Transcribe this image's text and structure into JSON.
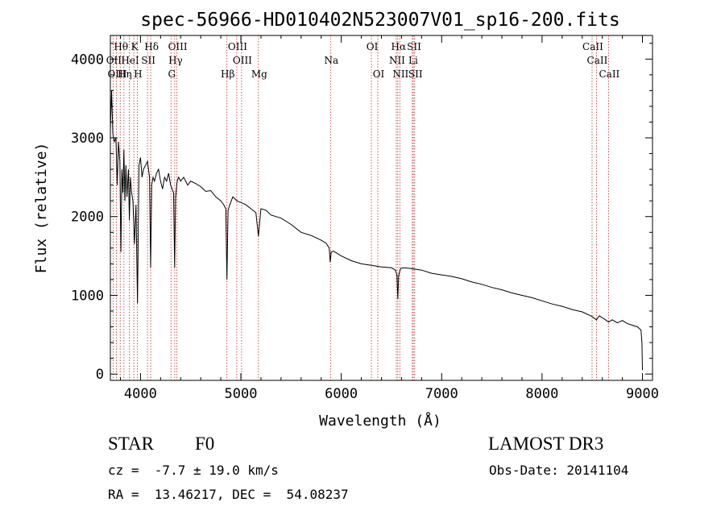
{
  "chart_data": {
    "type": "line",
    "title": "spec-56966-HD010402N523007V01_sp16-200.fits",
    "xlabel": "Wavelength (Å)",
    "ylabel": "Flux (relative)",
    "xlim": [
      3700,
      9100
    ],
    "ylim": [
      -80,
      4300
    ],
    "xticks": [
      4000,
      5000,
      6000,
      7000,
      8000,
      9000
    ],
    "yticks": [
      0,
      1000,
      2000,
      3000,
      4000
    ],
    "series": [
      {
        "name": "spectrum",
        "x": [
          3700,
          3712,
          3725,
          3740,
          3755,
          3768,
          3780,
          3795,
          3805,
          3815,
          3825,
          3835,
          3845,
          3855,
          3865,
          3880,
          3889,
          3900,
          3912,
          3925,
          3940,
          3955,
          3970,
          3985,
          4000,
          4015,
          4030,
          4050,
          4070,
          4090,
          4101,
          4112,
          4125,
          4140,
          4160,
          4180,
          4200,
          4220,
          4240,
          4260,
          4280,
          4300,
          4315,
          4330,
          4340,
          4350,
          4365,
          4380,
          4400,
          4430,
          4470,
          4500,
          4550,
          4600,
          4650,
          4700,
          4750,
          4800,
          4830,
          4850,
          4861,
          4872,
          4890,
          4920,
          4960,
          5000,
          5050,
          5100,
          5150,
          5175,
          5200,
          5250,
          5300,
          5400,
          5500,
          5600,
          5700,
          5800,
          5850,
          5880,
          5890,
          5900,
          5920,
          5950,
          6000,
          6100,
          6200,
          6300,
          6400,
          6500,
          6540,
          6555,
          6563,
          6572,
          6590,
          6620,
          6700,
          6800,
          6900,
          7000,
          7100,
          7200,
          7300,
          7400,
          7500,
          7600,
          7700,
          7800,
          7900,
          8000,
          8100,
          8200,
          8300,
          8400,
          8498,
          8530,
          8542,
          8570,
          8620,
          8662,
          8700,
          8750,
          8800,
          8850,
          8900,
          8950,
          8985,
          8995,
          9000
        ],
        "values": [
          3100,
          3600,
          3050,
          2950,
          3000,
          2400,
          2950,
          2700,
          1550,
          2600,
          2300,
          2850,
          2200,
          2650,
          2250,
          2600,
          1950,
          2500,
          2300,
          2200,
          1650,
          2150,
          900,
          2650,
          2750,
          2500,
          2600,
          2650,
          2700,
          2500,
          1350,
          2400,
          2500,
          2450,
          2550,
          2600,
          2450,
          2350,
          2500,
          2450,
          2550,
          2400,
          2350,
          2300,
          1350,
          2250,
          2450,
          2500,
          2450,
          2500,
          2400,
          2450,
          2420,
          2380,
          2320,
          2330,
          2250,
          2200,
          2150,
          2100,
          1200,
          2080,
          2150,
          2250,
          2200,
          2180,
          2150,
          2100,
          2050,
          1750,
          2100,
          2080,
          2020,
          1980,
          1900,
          1800,
          1760,
          1700,
          1660,
          1600,
          1420,
          1550,
          1560,
          1540,
          1500,
          1440,
          1400,
          1380,
          1360,
          1350,
          1320,
          1250,
          950,
          1250,
          1340,
          1350,
          1340,
          1320,
          1280,
          1260,
          1240,
          1210,
          1170,
          1140,
          1100,
          1070,
          1030,
          1000,
          970,
          930,
          890,
          860,
          820,
          790,
          730,
          700,
          690,
          740,
          700,
          660,
          690,
          650,
          680,
          640,
          620,
          600,
          560,
          400,
          50
        ]
      }
    ]
  },
  "lines": [
    {
      "label": "Hθ",
      "wave": 3798,
      "row": 1
    },
    {
      "label": "K",
      "wave": 3934,
      "row": 1
    },
    {
      "label": "Hδ",
      "wave": 4102,
      "row": 1
    },
    {
      "label": "OIII",
      "wave": 4363,
      "row": 1
    },
    {
      "label": "OIII",
      "wave": 4959,
      "row": 1
    },
    {
      "label": "OI",
      "wave": 6300,
      "row": 1
    },
    {
      "label": "Hα",
      "wave": 6563,
      "row": 1
    },
    {
      "label": "SII",
      "wave": 6717,
      "row": 1
    },
    {
      "label": "CaII",
      "wave": 8498,
      "row": 1
    },
    {
      "label": "OII",
      "wave": 3727,
      "row": 2
    },
    {
      "label": "HeI",
      "wave": 3889,
      "row": 2
    },
    {
      "label": "SII",
      "wave": 4070,
      "row": 2
    },
    {
      "label": "Hγ",
      "wave": 4341,
      "row": 2
    },
    {
      "label": "OIII",
      "wave": 5007,
      "row": 2
    },
    {
      "label": "Na",
      "wave": 5893,
      "row": 2
    },
    {
      "label": "NII",
      "wave": 6548,
      "row": 2
    },
    {
      "label": "Li",
      "wave": 6708,
      "row": 2
    },
    {
      "label": "CaII",
      "wave": 8542,
      "row": 2
    },
    {
      "label": "OIII",
      "wave": 3760,
      "row": 3
    },
    {
      "label": "Hη",
      "wave": 3835,
      "row": 3
    },
    {
      "label": "H",
      "wave": 3968,
      "row": 3
    },
    {
      "label": "G",
      "wave": 4304,
      "row": 3
    },
    {
      "label": "Hβ",
      "wave": 4861,
      "row": 3
    },
    {
      "label": "Mg",
      "wave": 5175,
      "row": 3
    },
    {
      "label": "OI",
      "wave": 6364,
      "row": 3
    },
    {
      "label": "NII",
      "wave": 6583,
      "row": 3
    },
    {
      "label": "SII",
      "wave": 6731,
      "row": 3
    },
    {
      "label": "CaII",
      "wave": 8662,
      "row": 3
    }
  ],
  "info": {
    "object_class": "STAR",
    "subclass": "F0",
    "survey": "LAMOST DR3",
    "redshift": "cz =  -7.7 ± 19.0 km/s",
    "obs_date": "Obs-Date: 20141104",
    "coords": "RA =  13.46217, DEC =  54.08237"
  },
  "colors": {
    "line_marker": "#cc2222",
    "spectrum": "#000000",
    "axes": "#000000"
  }
}
